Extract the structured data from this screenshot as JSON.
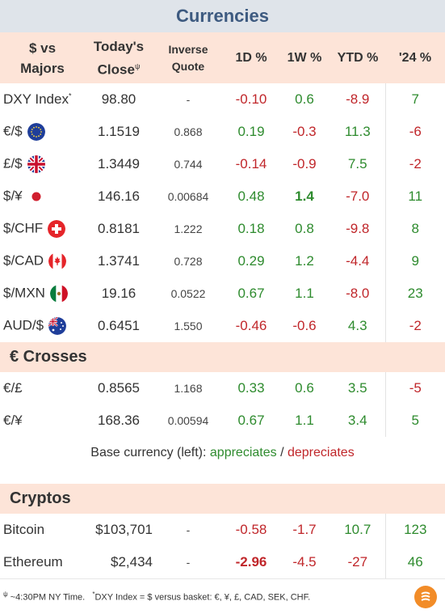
{
  "title": "Currencies",
  "headers": {
    "pair_line1": "$ vs",
    "pair_line2": "Majors",
    "close_line1": "Today's",
    "close_line2": "Close",
    "close_sup": "ψ",
    "inverse_line1": "Inverse",
    "inverse_line2": "Quote",
    "d1": "1D %",
    "w1": "1W %",
    "ytd": "YTD %",
    "y24": "'24 %"
  },
  "majors": [
    {
      "name": "DXY Index",
      "sup": "*",
      "flag": "",
      "close": "98.80",
      "inverse": "-",
      "d1": "-0.10",
      "w1": "0.6",
      "ytd": "-8.9",
      "y24": "7"
    },
    {
      "name": "€/$",
      "sup": "",
      "flag": "eu-flag-icon",
      "close": "1.1519",
      "inverse": "0.868",
      "d1": "0.19",
      "w1": "-0.3",
      "ytd": "11.3",
      "y24": "-6"
    },
    {
      "name": "£/$",
      "sup": "",
      "flag": "uk-flag-icon",
      "close": "1.3449",
      "inverse": "0.744",
      "d1": "-0.14",
      "w1": "-0.9",
      "ytd": "7.5",
      "y24": "-2"
    },
    {
      "name": "$/¥",
      "sup": "",
      "flag": "japan-flag-icon",
      "close": "146.16",
      "inverse": "0.00684",
      "d1": "0.48",
      "w1": "1.4",
      "ytd": "-7.0",
      "y24": "11"
    },
    {
      "name": "$/CHF",
      "sup": "",
      "flag": "swiss-flag-icon",
      "close": "0.8181",
      "inverse": "1.222",
      "d1": "0.18",
      "w1": "0.8",
      "ytd": "-9.8",
      "y24": "8"
    },
    {
      "name": "$/CAD",
      "sup": "",
      "flag": "canada-flag-icon",
      "close": "1.3741",
      "inverse": "0.728",
      "d1": "0.29",
      "w1": "1.2",
      "ytd": "-4.4",
      "y24": "9"
    },
    {
      "name": "$/MXN",
      "sup": "",
      "flag": "mexico-flag-icon",
      "close": "19.16",
      "inverse": "0.0522",
      "d1": "0.67",
      "w1": "1.1",
      "ytd": "-8.0",
      "y24": "23"
    },
    {
      "name": "AUD/$",
      "sup": "",
      "flag": "australia-flag-icon",
      "close": "0.6451",
      "inverse": "1.550",
      "d1": "-0.46",
      "w1": "-0.6",
      "ytd": "4.3",
      "y24": "-2"
    }
  ],
  "crosses_title": "€ Crosses",
  "crosses": [
    {
      "name": "€/£",
      "close": "0.8565",
      "inverse": "1.168",
      "d1": "0.33",
      "w1": "0.6",
      "ytd": "3.5",
      "y24": "-5"
    },
    {
      "name": "€/¥",
      "close": "168.36",
      "inverse": "0.00594",
      "d1": "0.67",
      "w1": "1.1",
      "ytd": "3.4",
      "y24": "5"
    }
  ],
  "legend": {
    "prefix": "Base currency (left):",
    "appreciates": "appreciates",
    "sep": "/",
    "depreciates": "depreciates"
  },
  "cryptos_title": "Cryptos",
  "cryptos": [
    {
      "name": "Bitcoin",
      "close": "$103,701",
      "inverse": "-",
      "d1": "-0.58",
      "w1": "-1.7",
      "ytd": "10.7",
      "y24": "123"
    },
    {
      "name": "Ethereum",
      "close": "$2,434",
      "inverse": "-",
      "d1": "-2.96",
      "w1": "-4.5",
      "ytd": "-27",
      "y24": "46"
    }
  ],
  "footer": {
    "note1_sup": "ψ",
    "note1": " ~4:30PM NY Time.",
    "note2_sup": "*",
    "note2": "DXY Index = $ versus basket: €, ¥, £, CAD, SEK, CHF."
  },
  "colors": {
    "positive": "#2e8b2e",
    "negative": "#c0262a",
    "header_bg": "#fde4d8",
    "title_bg": "#dfe4ea",
    "title_text": "#3d5a80"
  },
  "bold_cells": [
    "majors.3.w1",
    "cryptos.1.d1"
  ]
}
